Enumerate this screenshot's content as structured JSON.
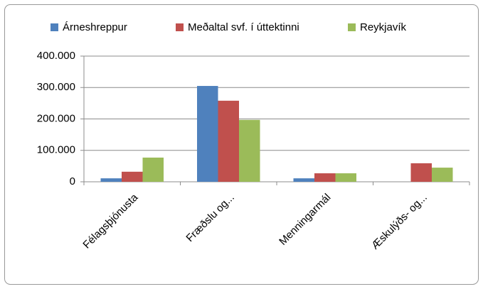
{
  "chart_data": {
    "type": "bar",
    "categories": [
      "Félagsþjónusta",
      "Fræðslu og...",
      "Menningarmál",
      "Æskulýðs- og..."
    ],
    "series": [
      {
        "name": "Árneshreppur",
        "color": "#4f81bd",
        "values": [
          11000,
          305000,
          11000,
          0
        ]
      },
      {
        "name": "Meðaltal svf. í úttektinni",
        "color": "#c0504d",
        "values": [
          32000,
          258000,
          27000,
          59000
        ]
      },
      {
        "name": "Reykjavík",
        "color": "#9bbb59",
        "values": [
          77000,
          197000,
          27000,
          45000
        ]
      }
    ],
    "ylim": [
      0,
      400000
    ],
    "yticks": [
      0,
      {
        "value": 100000,
        "label": "100.000"
      },
      {
        "value": 200000,
        "label": "200.000"
      },
      {
        "value": 300000,
        "label": "300.000"
      },
      {
        "value": 400000,
        "label": "400.000"
      }
    ],
    "grid": true,
    "legend": "top"
  }
}
